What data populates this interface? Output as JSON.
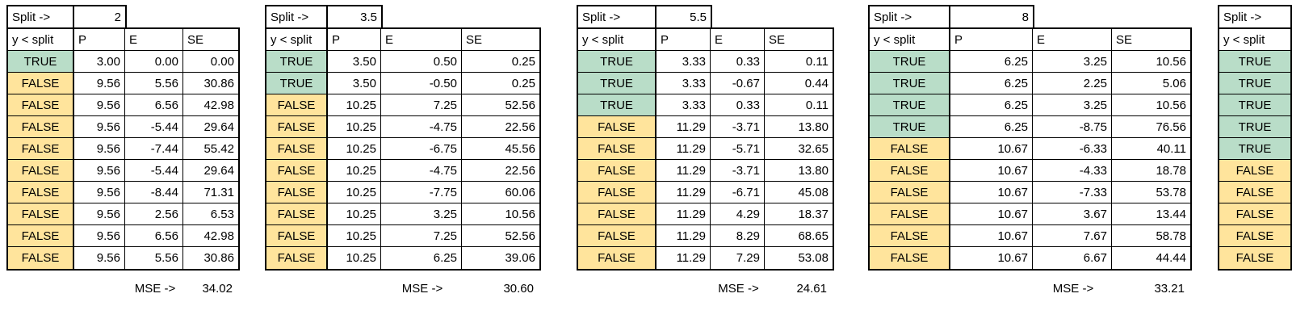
{
  "palette": {
    "background": "#ffffff",
    "border": "#000000",
    "true_bg": "#b9ddc8",
    "false_bg": "#ffe49c"
  },
  "labels": {
    "split_arrow": "Split ->",
    "condition": "y < split",
    "mse_arrow": "MSE ->",
    "true_label": "TRUE",
    "false_label": "FALSE"
  },
  "columns": [
    "P",
    "E",
    "SE"
  ],
  "tables": [
    {
      "split": "2",
      "mse": "34.02",
      "rows": [
        [
          "TRUE",
          "3.00",
          "0.00",
          "0.00"
        ],
        [
          "FALSE",
          "9.56",
          "5.56",
          "30.86"
        ],
        [
          "FALSE",
          "9.56",
          "6.56",
          "42.98"
        ],
        [
          "FALSE",
          "9.56",
          "-5.44",
          "29.64"
        ],
        [
          "FALSE",
          "9.56",
          "-7.44",
          "55.42"
        ],
        [
          "FALSE",
          "9.56",
          "-5.44",
          "29.64"
        ],
        [
          "FALSE",
          "9.56",
          "-8.44",
          "71.31"
        ],
        [
          "FALSE",
          "9.56",
          "2.56",
          "6.53"
        ],
        [
          "FALSE",
          "9.56",
          "6.56",
          "42.98"
        ],
        [
          "FALSE",
          "9.56",
          "5.56",
          "30.86"
        ]
      ]
    },
    {
      "split": "3.5",
      "mse": "30.60",
      "rows": [
        [
          "TRUE",
          "3.50",
          "0.50",
          "0.25"
        ],
        [
          "TRUE",
          "3.50",
          "-0.50",
          "0.25"
        ],
        [
          "FALSE",
          "10.25",
          "7.25",
          "52.56"
        ],
        [
          "FALSE",
          "10.25",
          "-4.75",
          "22.56"
        ],
        [
          "FALSE",
          "10.25",
          "-6.75",
          "45.56"
        ],
        [
          "FALSE",
          "10.25",
          "-4.75",
          "22.56"
        ],
        [
          "FALSE",
          "10.25",
          "-7.75",
          "60.06"
        ],
        [
          "FALSE",
          "10.25",
          "3.25",
          "10.56"
        ],
        [
          "FALSE",
          "10.25",
          "7.25",
          "52.56"
        ],
        [
          "FALSE",
          "10.25",
          "6.25",
          "39.06"
        ]
      ]
    },
    {
      "split": "5.5",
      "mse": "24.61",
      "rows": [
        [
          "TRUE",
          "3.33",
          "0.33",
          "0.11"
        ],
        [
          "TRUE",
          "3.33",
          "-0.67",
          "0.44"
        ],
        [
          "TRUE",
          "3.33",
          "0.33",
          "0.11"
        ],
        [
          "FALSE",
          "11.29",
          "-3.71",
          "13.80"
        ],
        [
          "FALSE",
          "11.29",
          "-5.71",
          "32.65"
        ],
        [
          "FALSE",
          "11.29",
          "-3.71",
          "13.80"
        ],
        [
          "FALSE",
          "11.29",
          "-6.71",
          "45.08"
        ],
        [
          "FALSE",
          "11.29",
          "4.29",
          "18.37"
        ],
        [
          "FALSE",
          "11.29",
          "8.29",
          "68.65"
        ],
        [
          "FALSE",
          "11.29",
          "7.29",
          "53.08"
        ]
      ]
    },
    {
      "split": "8",
      "mse": "33.21",
      "rows": [
        [
          "TRUE",
          "6.25",
          "3.25",
          "10.56"
        ],
        [
          "TRUE",
          "6.25",
          "2.25",
          "5.06"
        ],
        [
          "TRUE",
          "6.25",
          "3.25",
          "10.56"
        ],
        [
          "TRUE",
          "6.25",
          "-8.75",
          "76.56"
        ],
        [
          "FALSE",
          "10.67",
          "-6.33",
          "40.11"
        ],
        [
          "FALSE",
          "10.67",
          "-4.33",
          "18.78"
        ],
        [
          "FALSE",
          "10.67",
          "-7.33",
          "53.78"
        ],
        [
          "FALSE",
          "10.67",
          "3.67",
          "13.44"
        ],
        [
          "FALSE",
          "10.67",
          "7.67",
          "58.78"
        ],
        [
          "FALSE",
          "10.67",
          "6.67",
          "44.44"
        ]
      ]
    },
    {
      "split": "",
      "mse": "",
      "rows": [
        [
          "TRUE",
          "",
          "",
          ""
        ],
        [
          "TRUE",
          "",
          "",
          ""
        ],
        [
          "TRUE",
          "",
          "",
          ""
        ],
        [
          "TRUE",
          "",
          "",
          ""
        ],
        [
          "TRUE",
          "",
          "",
          ""
        ],
        [
          "FALSE",
          "",
          "",
          ""
        ],
        [
          "FALSE",
          "",
          "",
          ""
        ],
        [
          "FALSE",
          "",
          "",
          ""
        ],
        [
          "FALSE",
          "",
          "",
          ""
        ],
        [
          "FALSE",
          "",
          "",
          ""
        ]
      ]
    }
  ]
}
